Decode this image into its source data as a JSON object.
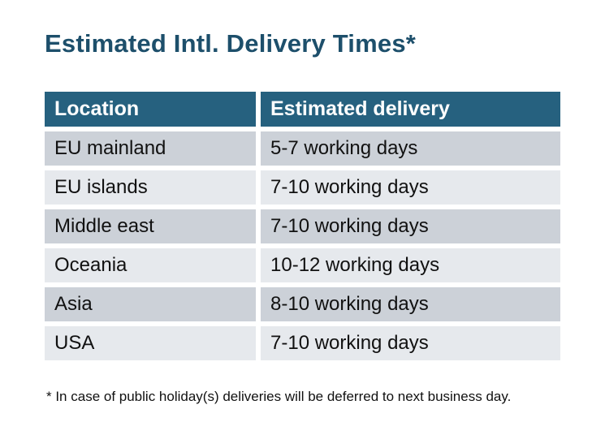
{
  "title": "Estimated Intl. Delivery Times*",
  "table": {
    "columns": [
      "Location",
      "Estimated delivery"
    ],
    "rows": [
      {
        "location": "EU mainland",
        "delivery": "5-7 working days"
      },
      {
        "location": "EU islands",
        "delivery": "7-10 working days"
      },
      {
        "location": "Middle east",
        "delivery": "7-10 working days"
      },
      {
        "location": "Oceania",
        "delivery": "10-12 working days"
      },
      {
        "location": "Asia",
        "delivery": "8-10 working days"
      },
      {
        "location": "USA",
        "delivery": "7-10 working days"
      }
    ]
  },
  "footnote": "* In case of public holiday(s) deliveries will be deferred to next business day.",
  "colors": {
    "background": "#ffffff",
    "title": "#1d4f6b",
    "header_bg": "#26617f",
    "header_text": "#ffffff",
    "row_odd_bg": "#ccd1d8",
    "row_even_bg": "#e6e9ed",
    "body_text": "#111111"
  }
}
